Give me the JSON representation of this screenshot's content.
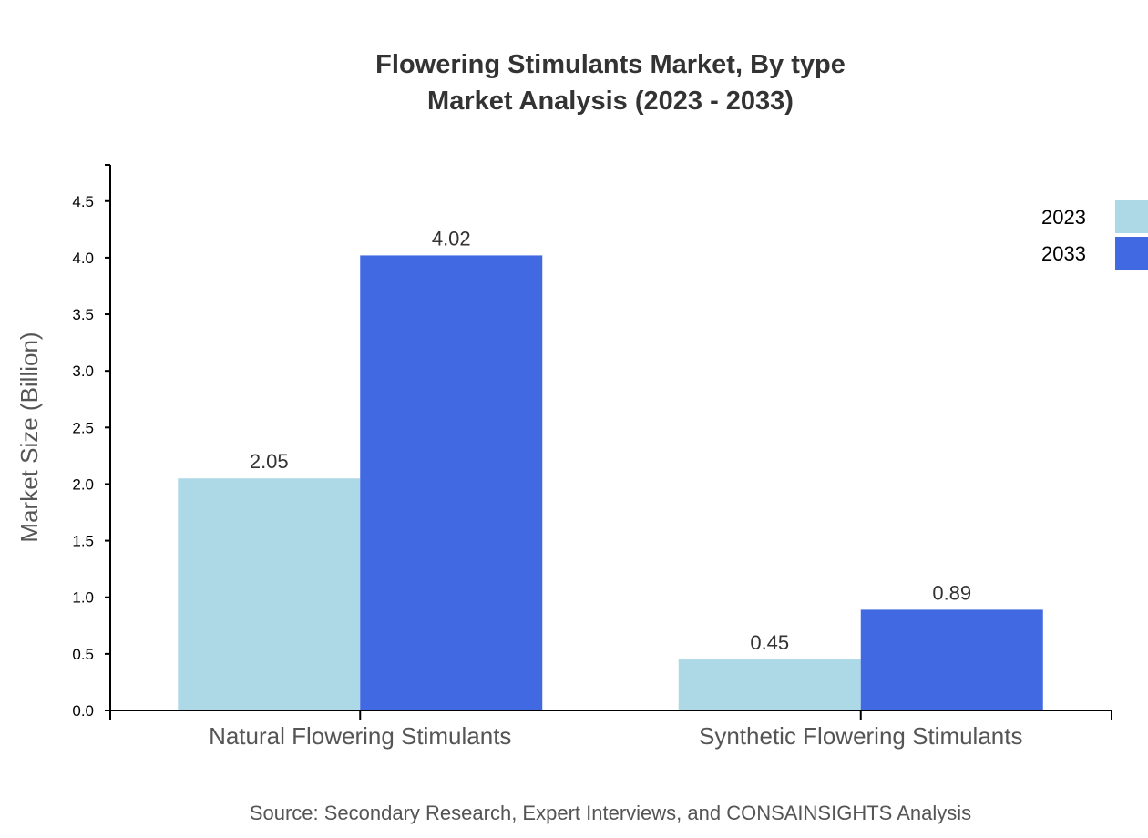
{
  "chart_data": {
    "type": "bar",
    "title": "Flowering Stimulants Market, By type",
    "subtitle": "Market Analysis (2023 - 2033)",
    "xlabel": "",
    "ylabel": "Market Size (Billion)",
    "categories": [
      "Natural Flowering Stimulants",
      "Synthetic Flowering Stimulants"
    ],
    "series": [
      {
        "name": "2023",
        "color": "#add8e6",
        "values": [
          2.05,
          0.45
        ]
      },
      {
        "name": "2033",
        "color": "#4169e1",
        "values": [
          4.02,
          0.89
        ]
      }
    ],
    "ylim": [
      0,
      4.82
    ],
    "yticks": [
      "0.0",
      "0.5",
      "1.0",
      "1.5",
      "2.0",
      "2.5",
      "3.0",
      "3.5",
      "4.0",
      "4.5"
    ],
    "grid": false,
    "legend": "top-right",
    "source": "Source: Secondary Research, Expert Interviews, and CONSAINSIGHTS Analysis"
  }
}
